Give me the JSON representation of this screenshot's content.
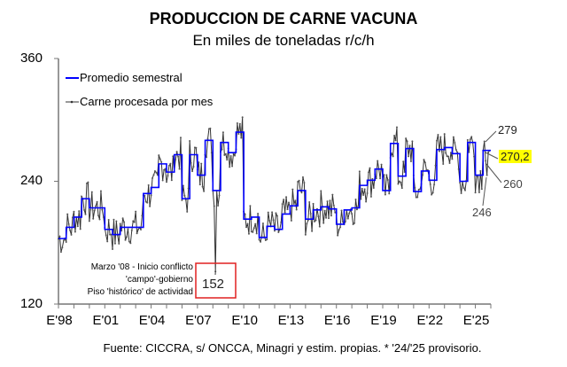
{
  "chart_data": {
    "type": "line",
    "title": "PRODUCCION DE CARNE VACUNA",
    "subtitle": "En miles de toneladas r/c/h",
    "xlabel": "",
    "ylabel": "",
    "ylim": [
      120,
      360
    ],
    "xlim": [
      1998,
      2026
    ],
    "yticks": [
      "120",
      "240",
      "360"
    ],
    "xticks": [
      {
        "year": 1998,
        "label": "E'98"
      },
      {
        "year": 2001,
        "label": "E'01"
      },
      {
        "year": 2004,
        "label": "E'04"
      },
      {
        "year": 2007,
        "label": "E'07"
      },
      {
        "year": 2010,
        "label": "E'10"
      },
      {
        "year": 2013,
        "label": "E'13"
      },
      {
        "year": 2016,
        "label": "E'16"
      },
      {
        "year": 2019,
        "label": "E'19"
      },
      {
        "year": 2022,
        "label": "E'22"
      },
      {
        "year": 2025,
        "label": "E'25"
      }
    ],
    "legend": [
      "Promedio semestral",
      "Carne procesada por mes"
    ],
    "legend_position": "top-left",
    "series": [
      {
        "name": "Promedio semestral",
        "color": "#0000ff",
        "start_year": 1998,
        "step": 0.5,
        "values": [
          184,
          195,
          205,
          223,
          214,
          214,
          193,
          188,
          195,
          195,
          195,
          228,
          234,
          257,
          249,
          266,
          223,
          266,
          246,
          280,
          231,
          278,
          268,
          288,
          203,
          205,
          185,
          196,
          193,
          208,
          216,
          231,
          203,
          212,
          215,
          213,
          198,
          212,
          214,
          236,
          241,
          252,
          231,
          277,
          245,
          272,
          230,
          250,
          241,
          271,
          273,
          267,
          240,
          278,
          246,
          270.2
        ]
      },
      {
        "name": "Carne procesada por mes",
        "color": "#333333",
        "note": "monthly series around semester averages",
        "key_points": [
          {
            "x": 2008.17,
            "y": 152
          },
          {
            "x": 2025.5,
            "y": 279
          },
          {
            "x": 2025.6,
            "y": 260
          },
          {
            "x": 2025.4,
            "y": 246
          }
        ]
      }
    ],
    "annotations": {
      "last_avg": "270,2",
      "a279": "279",
      "a260": "260",
      "a246": "246",
      "a152": "152",
      "conflict": [
        "Marzo '08 - Inicio conflicto",
        "'campo'-gobierno",
        "Piso 'histórico' de actividad"
      ]
    },
    "footer": "Fuente: CICCRA, s/ ONCCA, Minagri y estim. propias. * '24/'25 provisorio."
  }
}
